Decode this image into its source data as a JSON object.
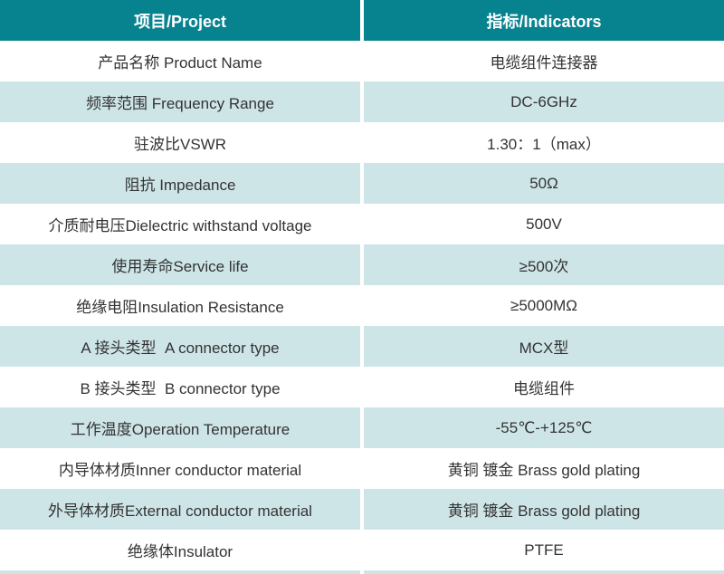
{
  "header": {
    "project_label": "项目/Project",
    "indicators_label": "指标/Indicators"
  },
  "rows": [
    {
      "project": "产品名称 Product Name",
      "indicator": "电缆组件连接器"
    },
    {
      "project": "频率范围 Frequency Range",
      "indicator": "DC-6GHz"
    },
    {
      "project": "驻波比VSWR",
      "indicator": "1.30：1（max）"
    },
    {
      "project": "阻抗 Impedance",
      "indicator": "50Ω"
    },
    {
      "project": "介质耐电压Dielectric withstand voltage",
      "indicator": "500V"
    },
    {
      "project": "使用寿命Service life",
      "indicator": "≥500次"
    },
    {
      "project": "绝缘电阻Insulation Resistance",
      "indicator": "≥5000MΩ"
    },
    {
      "project": "A 接头类型  A connector type",
      "indicator": "MCX型"
    },
    {
      "project": "B 接头类型  B connector type",
      "indicator": "电缆组件"
    },
    {
      "project": "工作温度Operation Temperature",
      "indicator": "-55℃-+125℃"
    },
    {
      "project": "内导体材质Inner conductor material",
      "indicator": "黄铜 镀金 Brass gold plating"
    },
    {
      "project": "外导体材质External conductor material",
      "indicator": "黄铜 镀金 Brass gold plating"
    },
    {
      "project": "绝缘体Insulator",
      "indicator": "PTFE"
    }
  ],
  "colors": {
    "header_bg": "#07828F",
    "header_text": "#FFFFFF",
    "row_bg": "#FFFFFF",
    "row_alt_bg": "#CEE5E8",
    "body_text": "#333333"
  }
}
